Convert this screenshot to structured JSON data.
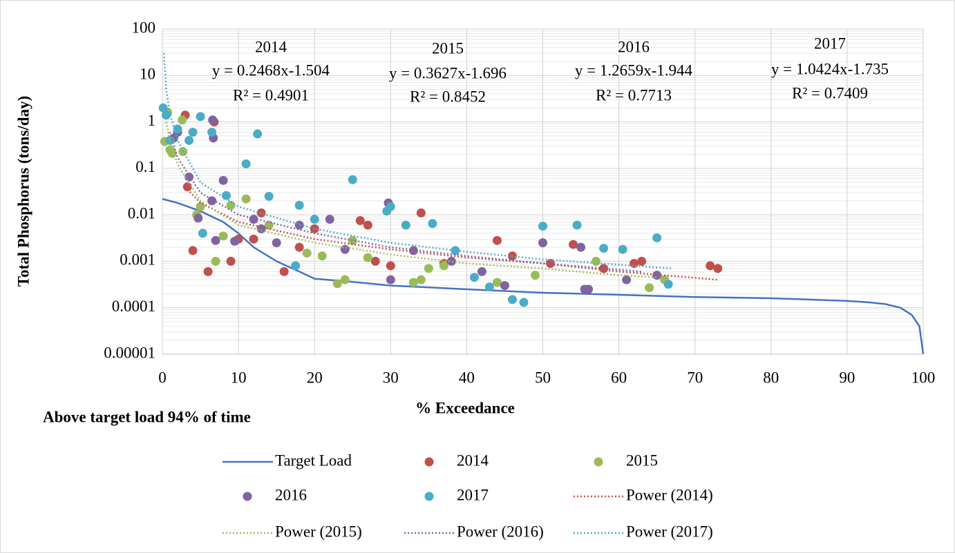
{
  "chart_data": {
    "type": "scatter",
    "x_label": "% Exceedance",
    "y_label": "Total Phosphorus (tons/day)",
    "note": "Above target load 94% of time",
    "xlim": [
      0,
      100
    ],
    "xticks": [
      0,
      10,
      20,
      30,
      40,
      50,
      60,
      70,
      80,
      90,
      100
    ],
    "ylim": [
      1e-05,
      100
    ],
    "yticks": [
      100,
      10,
      1,
      0.1,
      0.01,
      0.001,
      0.0001,
      1e-05
    ],
    "log_y": true,
    "grid": true,
    "minor_grid": true,
    "legend": "bottom",
    "annotations": [
      {
        "year": "2014",
        "equation": "y = 0.2468x-1.504",
        "r2": "R² = 0.4901"
      },
      {
        "year": "2015",
        "equation": "y = 0.3627x-1.696",
        "r2": "R² = 0.8452"
      },
      {
        "year": "2016",
        "equation": "y = 1.2659x-1.944",
        "r2": "R² = 0.7713"
      },
      {
        "year": "2017",
        "equation": "y = 1.0424x-1.735",
        "r2": "R² = 0.7409"
      }
    ],
    "series": [
      {
        "name": "Target Load",
        "style": "line",
        "color": "#4472c4",
        "x": [
          0,
          2,
          5,
          8,
          10,
          12,
          15,
          18,
          20,
          25,
          30,
          40,
          50,
          60,
          70,
          80,
          85,
          90,
          93,
          95,
          97,
          98.5,
          99.5,
          100
        ],
        "values": [
          0.022,
          0.018,
          0.012,
          0.007,
          0.004,
          0.002,
          0.001,
          0.0006,
          0.00042,
          0.00036,
          0.0003,
          0.00025,
          0.00021,
          0.00019,
          0.00017,
          0.00016,
          0.00015,
          0.00014,
          0.00013,
          0.00012,
          0.0001,
          7e-05,
          4e-05,
          1e-05
        ]
      },
      {
        "name": "2014",
        "style": "marker",
        "color": "#c0504d",
        "x": [
          3,
          6.8,
          3.3,
          4,
          6,
          9,
          10,
          12,
          13,
          16,
          18,
          20,
          26,
          27,
          28,
          30,
          34,
          37,
          44,
          46,
          51,
          54,
          58,
          62,
          63,
          72,
          73
        ],
        "values": [
          1.4,
          1.0,
          0.04,
          0.0017,
          0.0006,
          0.001,
          0.003,
          0.003,
          0.011,
          0.0006,
          0.002,
          0.005,
          0.0075,
          0.006,
          0.001,
          0.0008,
          0.011,
          0.0009,
          0.0028,
          0.0013,
          0.0009,
          0.0023,
          0.0007,
          0.0009,
          0.001,
          0.0008,
          0.0007
        ]
      },
      {
        "name": "2015",
        "style": "marker",
        "color": "#9bbb59",
        "x": [
          0.3,
          0.7,
          1,
          1.3,
          2.6,
          2.7,
          4.5,
          5,
          7,
          8,
          9,
          11,
          14,
          19,
          21,
          23,
          24,
          25,
          27,
          33,
          34,
          35,
          37,
          44,
          49,
          57,
          64,
          66
        ],
        "values": [
          0.38,
          1.6,
          0.25,
          0.21,
          1.1,
          0.23,
          0.01,
          0.015,
          0.001,
          0.0035,
          0.016,
          0.022,
          0.006,
          0.0015,
          0.0013,
          0.00033,
          0.0004,
          0.0028,
          0.0012,
          0.00035,
          0.0004,
          0.0007,
          0.0008,
          0.00035,
          0.0005,
          0.001,
          0.00027,
          0.0004
        ]
      },
      {
        "name": "2016",
        "style": "marker",
        "color": "#8064a2",
        "x": [
          1.5,
          2,
          3.5,
          4.7,
          6.6,
          6.7,
          6.5,
          7,
          8,
          9.5,
          12,
          13,
          15,
          18,
          22,
          24,
          29.7,
          30,
          33,
          38,
          42,
          45,
          50,
          55,
          55.5,
          56,
          61,
          65
        ],
        "values": [
          0.45,
          0.6,
          0.065,
          0.0085,
          1.1,
          0.45,
          0.02,
          0.0028,
          0.055,
          0.0027,
          0.008,
          0.005,
          0.0025,
          0.006,
          0.008,
          0.0018,
          0.018,
          0.0004,
          0.0017,
          0.001,
          0.0006,
          0.0003,
          0.0025,
          0.002,
          0.00025,
          0.00025,
          0.0004,
          0.0005
        ]
      },
      {
        "name": "2017",
        "style": "marker",
        "color": "#4bacc6",
        "x": [
          0.1,
          0.5,
          1,
          2,
          3.5,
          4,
          5,
          5.3,
          6.5,
          8.4,
          11,
          12.5,
          14,
          17.5,
          18,
          20,
          25,
          29.5,
          30,
          32,
          35.5,
          38.5,
          41,
          43,
          46,
          47.5,
          50,
          54.5,
          58,
          60.5,
          65,
          66.5
        ],
        "values": [
          2,
          1.4,
          0.4,
          0.7,
          0.4,
          0.6,
          1.3,
          0.004,
          0.6,
          0.026,
          0.125,
          0.55,
          0.025,
          0.0008,
          0.016,
          0.008,
          0.057,
          0.012,
          0.015,
          0.006,
          0.0065,
          0.0017,
          0.00045,
          0.00028,
          0.00015,
          0.00013,
          0.0057,
          0.006,
          0.0019,
          0.0018,
          0.0032,
          0.00032
        ]
      },
      {
        "name": "Power (2014)",
        "style": "dotted",
        "color": "#c0504d",
        "x": [
          3,
          5,
          10,
          20,
          30,
          40,
          50,
          60,
          73
        ],
        "values": [
          0.04,
          0.018,
          0.007,
          0.003,
          0.0018,
          0.0012,
          0.0009,
          0.0006,
          0.0004
        ]
      },
      {
        "name": "Power (2015)",
        "style": "dotted",
        "color": "#9bbb59",
        "x": [
          0.5,
          1,
          2,
          5,
          10,
          20,
          30,
          40,
          50,
          60,
          65
        ],
        "values": [
          1,
          0.4,
          0.12,
          0.02,
          0.006,
          0.0025,
          0.0014,
          0.0009,
          0.0007,
          0.0005,
          0.00045
        ]
      },
      {
        "name": "Power (2016)",
        "style": "dotted",
        "color": "#8064a2",
        "x": [
          1,
          2,
          5,
          10,
          20,
          30,
          40,
          50,
          63
        ],
        "values": [
          0.6,
          0.17,
          0.03,
          0.01,
          0.004,
          0.002,
          0.0013,
          0.0009,
          0.0006
        ]
      },
      {
        "name": "Power (2017)",
        "style": "dotted",
        "color": "#4bacc6",
        "x": [
          0.2,
          0.5,
          1,
          2,
          5,
          10,
          20,
          30,
          40,
          50,
          67
        ],
        "values": [
          30,
          5,
          1.5,
          0.4,
          0.05,
          0.015,
          0.005,
          0.0025,
          0.0016,
          0.0011,
          0.0007
        ]
      }
    ]
  }
}
